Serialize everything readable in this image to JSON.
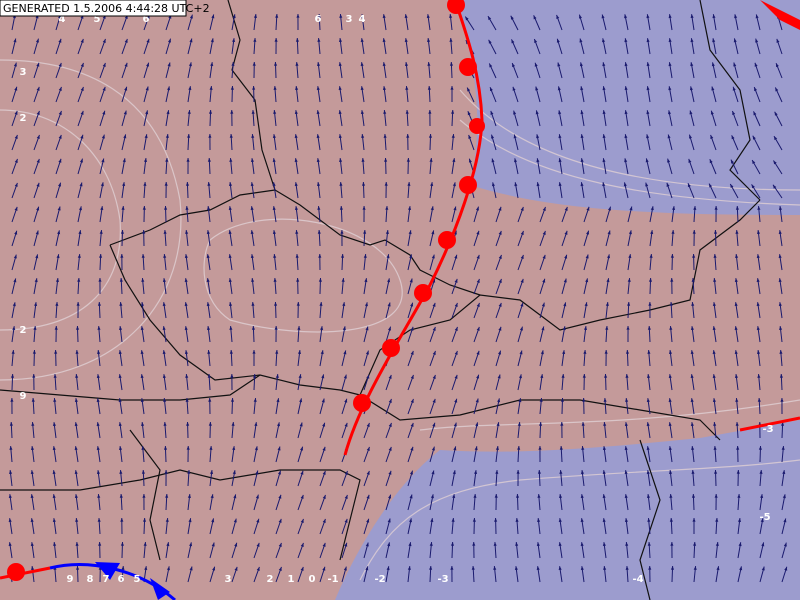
{
  "header": {
    "title": "GENERATED 1.5.2006 4:44:28 UTC+2"
  },
  "contour_labels": [
    "4",
    "5",
    "6",
    "6",
    "3",
    "4",
    "3",
    "2",
    "2",
    "9",
    "9",
    "8",
    "7",
    "6",
    "5",
    "3",
    "2",
    "1",
    "0",
    "-1",
    "-2",
    "-3",
    "-3",
    "-4",
    "-5"
  ]
}
